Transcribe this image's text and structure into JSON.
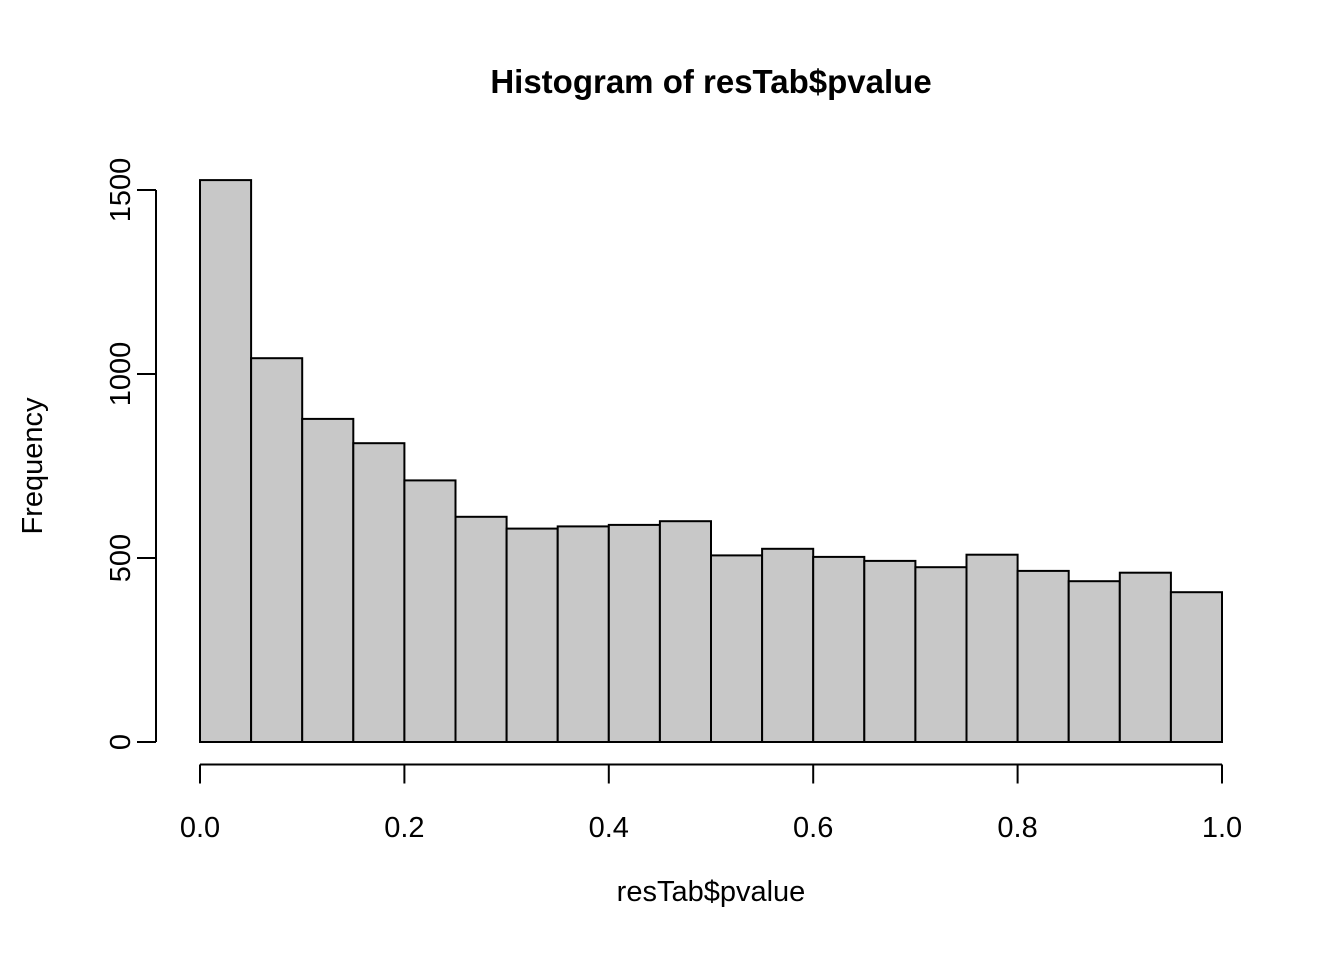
{
  "page": {
    "background_color": "#ffffff"
  },
  "chart_data": {
    "type": "bar",
    "subtype": "histogram",
    "title": "Histogram of resTab$pvalue",
    "xlabel": "resTab$pvalue",
    "ylabel": "Frequency",
    "bin_start": 0.0,
    "bin_width": 0.05,
    "bin_edges": [
      0.0,
      0.05,
      0.1,
      0.15,
      0.2,
      0.25,
      0.3,
      0.35,
      0.4,
      0.45,
      0.5,
      0.55,
      0.6,
      0.65,
      0.7,
      0.75,
      0.8,
      0.85,
      0.9,
      0.95,
      1.0
    ],
    "values": [
      1527,
      1043,
      878,
      812,
      711,
      612,
      580,
      586,
      590,
      600,
      507,
      525,
      503,
      492,
      475,
      509,
      465,
      437,
      460,
      407
    ],
    "xlim": [
      0.0,
      1.0
    ],
    "ylim": [
      0,
      1527
    ],
    "x_ticks": [
      0.0,
      0.2,
      0.4,
      0.6,
      0.8,
      1.0
    ],
    "x_tick_labels": [
      "0.0",
      "0.2",
      "0.4",
      "0.6",
      "0.8",
      "1.0"
    ],
    "y_ticks": [
      0,
      500,
      1000,
      1500
    ],
    "y_tick_labels": [
      "0",
      "500",
      "1000",
      "1500"
    ],
    "grid": false,
    "legend": null,
    "bar_fill": "#C8C8C8",
    "bar_stroke": "#000000",
    "axis_color": "#000000",
    "background": "#ffffff"
  }
}
